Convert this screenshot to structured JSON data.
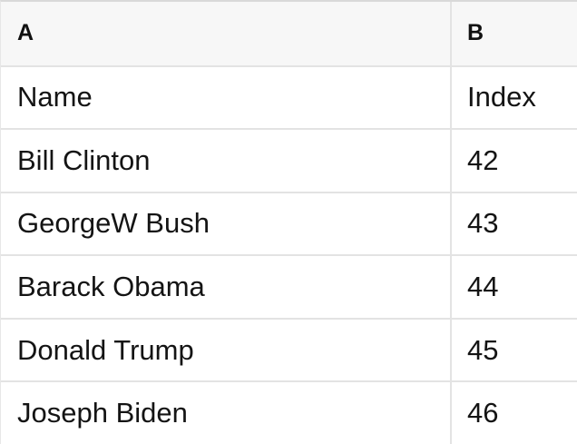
{
  "table": {
    "column_headers": [
      "A",
      "B"
    ],
    "rows": [
      [
        "Name",
        "Index"
      ],
      [
        "Bill Clinton",
        "42"
      ],
      [
        "GeorgeW Bush",
        "43"
      ],
      [
        "Barack Obama",
        "44"
      ],
      [
        "Donald Trump",
        "45"
      ],
      [
        "Joseph Biden",
        "46"
      ]
    ]
  },
  "colors": {
    "header_background": "#f7f7f7",
    "divider": "#e3e3e3",
    "top_border": "#d9d9d9",
    "text": "#141414",
    "row_background": "#ffffff"
  }
}
